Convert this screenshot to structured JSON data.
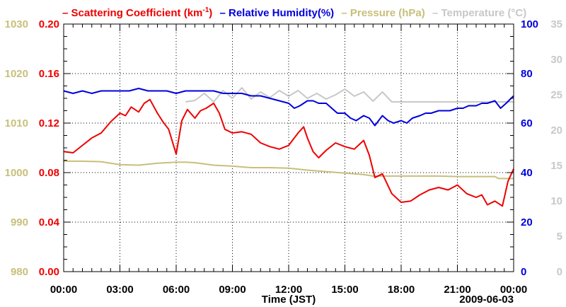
{
  "chart_data": {
    "type": "line",
    "xlabel": "Time (JST)",
    "date_label": "2009-06-03",
    "x_tick_labels": [
      "00:00",
      "03:00",
      "06:00",
      "09:00",
      "12:00",
      "15:00",
      "18:00",
      "21:00",
      "00:00"
    ],
    "x_range_hours": [
      0,
      24
    ],
    "legend": [
      {
        "dash": "–",
        "name_pre": "Scattering Coefficient (km",
        "name_sup": "-1",
        "name_post": ")",
        "color": "#ee0000"
      },
      {
        "dash": "–",
        "name_pre": "Relative Humidity(%)",
        "name_sup": "",
        "name_post": "",
        "color": "#0000dd"
      },
      {
        "dash": "–",
        "name_pre": "Pressure (hPa)",
        "name_sup": "",
        "name_post": "",
        "color": "#c8bf7a"
      },
      {
        "dash": "–",
        "name_pre": "Temperature (°C)",
        "name_sup": "",
        "name_post": "",
        "color": "#c8c8c8"
      }
    ],
    "axes": {
      "pressure": {
        "range": [
          980,
          1030
        ],
        "ticks": [
          "980",
          "990",
          "1000",
          "1010",
          "1020",
          "1030"
        ],
        "color": "#c8bf7a"
      },
      "scattering": {
        "range": [
          0,
          0.2
        ],
        "ticks": [
          "0.00",
          "0.04",
          "0.08",
          "0.12",
          "0.16",
          "0.20"
        ],
        "color": "#ee0000"
      },
      "humidity": {
        "range": [
          0,
          100
        ],
        "ticks": [
          "0",
          "20",
          "40",
          "60",
          "80",
          "100"
        ],
        "color": "#0000dd"
      },
      "temperature": {
        "range": [
          0,
          35
        ],
        "ticks": [
          "0",
          "5",
          "10",
          "15",
          "20",
          "25",
          "30",
          "35"
        ],
        "color": "#c8c8c8"
      }
    },
    "series": [
      {
        "name": "Scattering Coefficient",
        "axis": "scattering",
        "color": "#ee0000",
        "x": [
          0,
          0.5,
          1,
          1.5,
          2,
          2.5,
          3,
          3.3,
          3.6,
          4,
          4.3,
          4.6,
          5,
          5.3,
          5.6,
          6,
          6.3,
          6.6,
          7,
          7.3,
          7.6,
          8,
          8.3,
          8.6,
          9,
          9.5,
          10,
          10.5,
          11,
          11.5,
          12,
          12.5,
          12.8,
          13,
          13.3,
          13.6,
          14,
          14.5,
          15,
          15.5,
          16,
          16.3,
          16.6,
          17,
          17.5,
          18,
          18.5,
          19,
          19.5,
          20,
          20.5,
          21,
          21.5,
          22,
          22.3,
          22.6,
          23,
          23.4,
          23.7,
          24
        ],
        "values": [
          0.097,
          0.096,
          0.102,
          0.108,
          0.112,
          0.121,
          0.128,
          0.126,
          0.133,
          0.129,
          0.136,
          0.139,
          0.128,
          0.121,
          0.115,
          0.095,
          0.122,
          0.131,
          0.124,
          0.13,
          0.132,
          0.136,
          0.128,
          0.115,
          0.112,
          0.113,
          0.111,
          0.104,
          0.101,
          0.099,
          0.102,
          0.112,
          0.117,
          0.108,
          0.097,
          0.092,
          0.098,
          0.104,
          0.101,
          0.099,
          0.106,
          0.094,
          0.076,
          0.079,
          0.063,
          0.056,
          0.057,
          0.062,
          0.066,
          0.068,
          0.066,
          0.07,
          0.063,
          0.06,
          0.062,
          0.054,
          0.057,
          0.053,
          0.073,
          0.083
        ]
      },
      {
        "name": "Relative Humidity",
        "axis": "humidity",
        "color": "#0000dd",
        "x": [
          0,
          0.5,
          1,
          1.5,
          2,
          2.5,
          3,
          3.5,
          4,
          4.5,
          5,
          5.5,
          6,
          6.5,
          7,
          7.5,
          8,
          8.5,
          9,
          9.5,
          10,
          10.5,
          11,
          11.5,
          12,
          12.3,
          12.6,
          13,
          13.3,
          13.6,
          14,
          14.3,
          14.6,
          15,
          15.3,
          15.6,
          16,
          16.3,
          16.6,
          17,
          17.3,
          17.6,
          18,
          18.3,
          18.6,
          19,
          19.3,
          19.6,
          20,
          20.3,
          20.6,
          21,
          21.3,
          21.6,
          22,
          22.3,
          22.6,
          23,
          23.3,
          23.6,
          24
        ],
        "values": [
          73,
          72,
          73,
          72,
          73,
          73,
          73,
          73,
          74,
          73,
          73,
          73,
          72,
          73,
          73,
          73,
          73,
          72,
          72,
          72,
          71,
          71,
          70,
          69,
          68,
          66,
          67,
          69,
          69,
          68,
          68,
          66,
          64,
          64,
          62,
          61,
          63,
          62,
          59,
          63,
          61,
          60,
          61,
          60,
          62,
          63,
          64,
          64,
          65,
          65,
          65,
          66,
          66,
          67,
          67,
          68,
          68,
          69,
          66,
          68,
          71
        ]
      },
      {
        "name": "Pressure",
        "axis": "pressure",
        "color": "#c8bf7a",
        "x": [
          0,
          1,
          2,
          3,
          4,
          5,
          6,
          6.5,
          7,
          8,
          9,
          10,
          11,
          12,
          13,
          14,
          15,
          16,
          16.5,
          17,
          18,
          19,
          20,
          21,
          22,
          23,
          23.2,
          24
        ],
        "values": [
          1002.3,
          1002.3,
          1002.2,
          1001.6,
          1001.5,
          1001.9,
          1002.1,
          1002.1,
          1002.0,
          1001.5,
          1001.3,
          1001.0,
          1001.0,
          1000.9,
          1000.5,
          1000.2,
          999.9,
          999.6,
          999.3,
          999.3,
          999.3,
          999.3,
          999.3,
          999.2,
          999.2,
          999.2,
          998.8,
          998.8
        ]
      },
      {
        "name": "Temperature",
        "axis": "temperature",
        "color": "#c8c8c8",
        "x": [
          6.5,
          7,
          7.5,
          8,
          8.5,
          9,
          9.5,
          10,
          10.5,
          11,
          11.5,
          12,
          12.5,
          13,
          13.5,
          14,
          14.5,
          15,
          15.5,
          16,
          16.5,
          17,
          17.5,
          18,
          19,
          20,
          21,
          22,
          23,
          24
        ],
        "values": [
          24.0,
          24.2,
          25.2,
          24.0,
          25.6,
          24.5,
          26.0,
          24.4,
          25.4,
          24.6,
          25.6,
          24.8,
          25.6,
          24.5,
          25.2,
          24.4,
          25.0,
          25.8,
          24.8,
          25.4,
          24.1,
          25.4,
          24.0,
          24.0,
          24.0,
          24.0,
          24.0,
          24.0,
          24.0,
          24.0
        ]
      }
    ]
  }
}
